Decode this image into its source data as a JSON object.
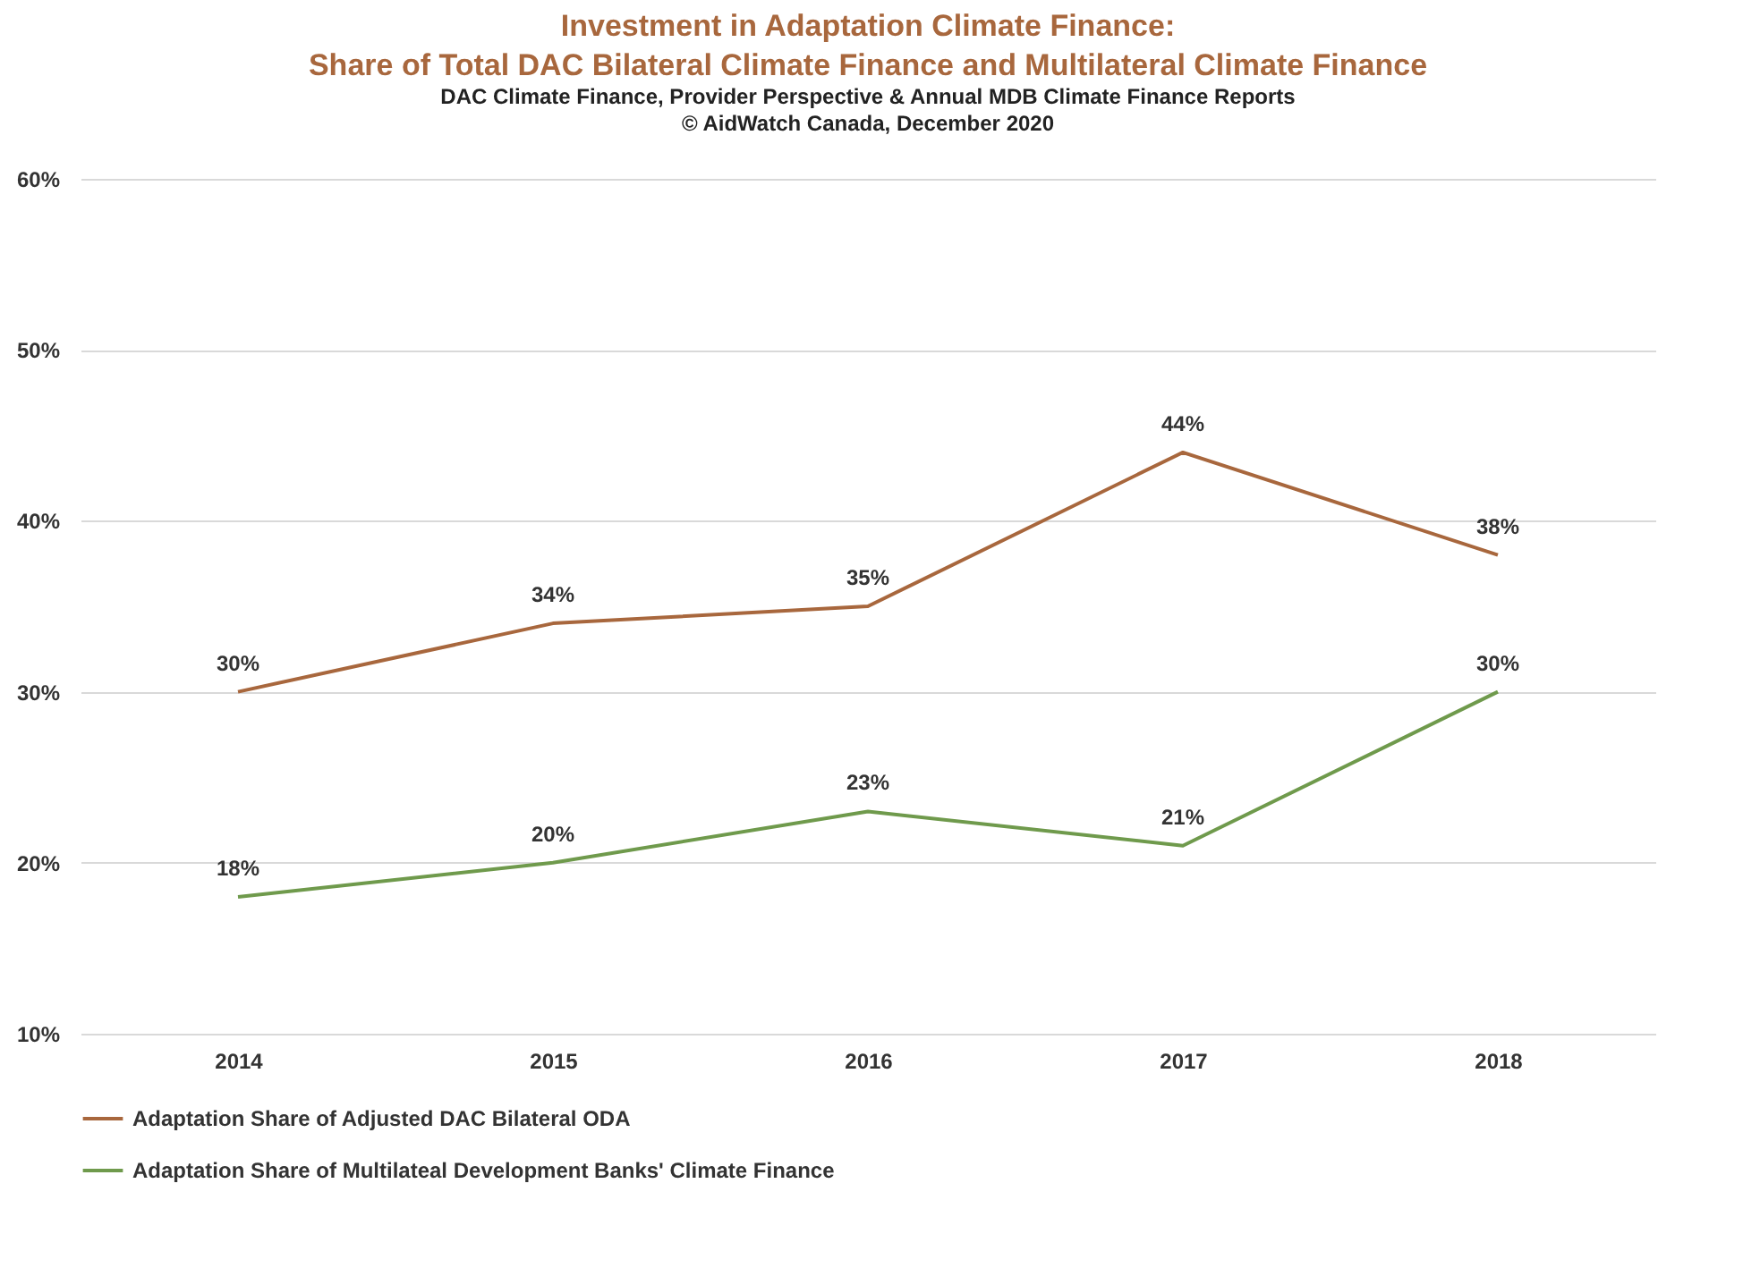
{
  "chart_data": {
    "type": "line",
    "title": "Investment in Adaptation Climate Finance:\nShare of Total DAC Bilateral Climate Finance and Multilateral Climate Finance",
    "subtitle": "DAC Climate Finance, Provider Perspective & Annual  MDB Climate Finance Reports\n© AidWatch Canada, December 2020",
    "categories": [
      "2014",
      "2015",
      "2016",
      "2017",
      "2018"
    ],
    "series": [
      {
        "name": "Adaptation Share of Adjusted DAC Bilateral ODA",
        "color": "#a8673d",
        "values": [
          30,
          34,
          35,
          44,
          38
        ],
        "value_labels": [
          "30%",
          "34%",
          "35%",
          "44%",
          "38%"
        ]
      },
      {
        "name": "Adaptation Share of Multilateal Development Banks' Climate Finance",
        "color": "#6f9a4c",
        "values": [
          18,
          20,
          23,
          21,
          30
        ],
        "value_labels": [
          "18%",
          "20%",
          "23%",
          "21%",
          "30%"
        ]
      }
    ],
    "ylim": [
      10,
      60
    ],
    "yticks": [
      {
        "value": 10,
        "label": "10%"
      },
      {
        "value": 20,
        "label": "20%"
      },
      {
        "value": 30,
        "label": "30%"
      },
      {
        "value": 40,
        "label": "40%"
      },
      {
        "value": 50,
        "label": "50%"
      },
      {
        "value": 60,
        "label": "60%"
      }
    ],
    "grid": "y",
    "legend": "bottom",
    "marker": "none",
    "line_style": "solid"
  }
}
